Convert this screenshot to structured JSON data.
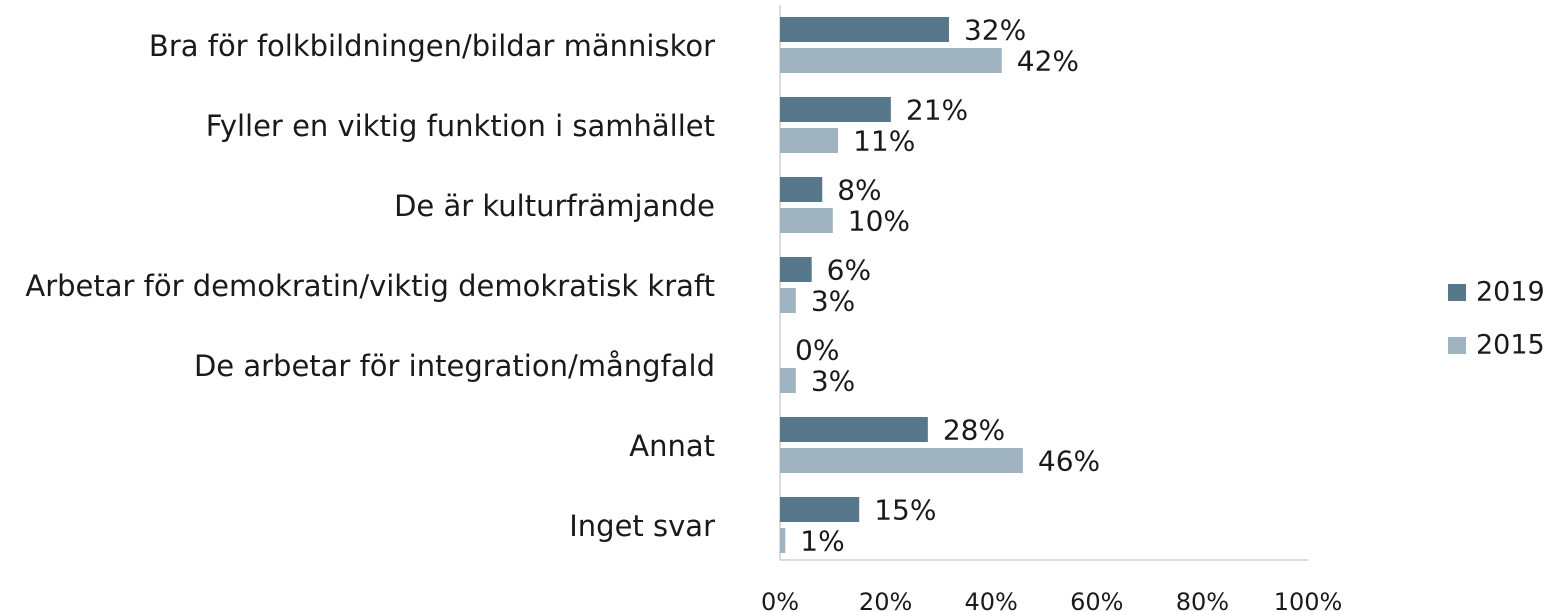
{
  "chart_data": {
    "type": "bar",
    "orientation": "horizontal",
    "categories": [
      "Bra för folkbildningen/bildar människor",
      "Fyller en viktig funktion i samhället",
      "De är kulturfrämjande",
      "Arbetar för demokratin/viktig demokratisk kraft",
      "De arbetar för integration/mångfald",
      "Annat",
      "Inget svar"
    ],
    "series": [
      {
        "name": "2019",
        "color": "#57788a",
        "values": [
          32,
          21,
          8,
          6,
          0,
          28,
          15
        ],
        "value_labels": [
          "32%",
          "21%",
          "8%",
          "6%",
          "0%",
          "28%",
          "15%"
        ]
      },
      {
        "name": "2015",
        "color": "#9fb3c0",
        "values": [
          42,
          11,
          10,
          3,
          3,
          46,
          1
        ],
        "value_labels": [
          "42%",
          "11%",
          "10%",
          "3%",
          "3%",
          "46%",
          "1%"
        ]
      }
    ],
    "xlim": [
      0,
      100
    ],
    "xticks": [
      {
        "value": 0,
        "label": "0%"
      },
      {
        "value": 20,
        "label": "20%"
      },
      {
        "value": 40,
        "label": "40%"
      },
      {
        "value": 60,
        "label": "60%"
      },
      {
        "value": 80,
        "label": "80%"
      },
      {
        "value": 100,
        "label": "100%"
      }
    ],
    "grid": false,
    "legend": "right"
  }
}
